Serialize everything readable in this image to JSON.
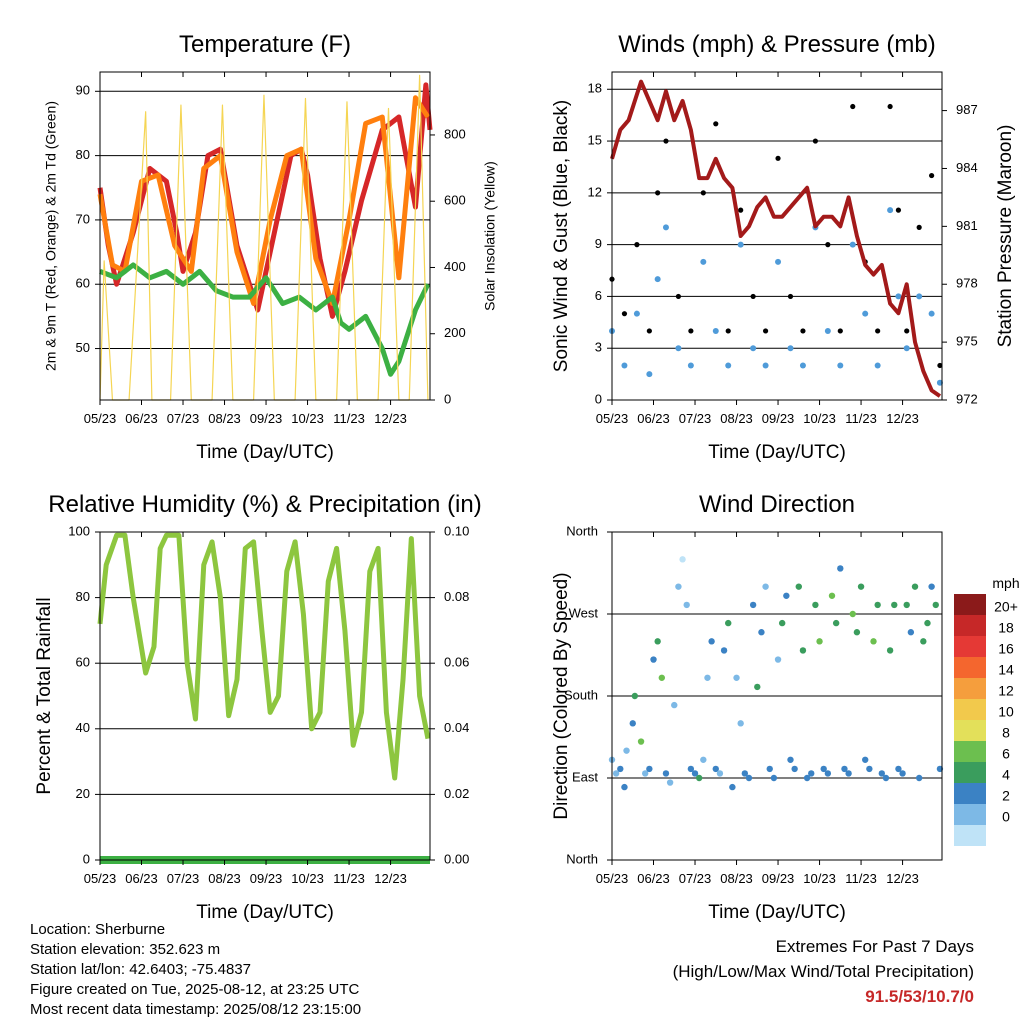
{
  "chart_data": [
    {
      "type": "line",
      "title": "Temperature (F)",
      "xlabel": "Time (Day/UTC)",
      "ylabel": "2m & 9m T (Red, Orange) & 2m Td (Green)",
      "ylabel_right": "Solar Insolation (Yellow)",
      "x_ticks": [
        "05/23",
        "06/23",
        "07/23",
        "08/23",
        "09/23",
        "10/23",
        "11/23",
        "12/23"
      ],
      "ylim": [
        42,
        93
      ],
      "y_ticks": [
        50,
        60,
        70,
        80,
        90
      ],
      "ylim_right": [
        0,
        990
      ],
      "y_ticks_right": [
        0,
        200,
        400,
        600,
        800
      ],
      "grid": true,
      "series": [
        {
          "name": "2m T",
          "color": "#d62728",
          "axis": "left",
          "x": [
            0,
            0.2,
            0.4,
            0.8,
            1.2,
            1.6,
            1.85,
            2.0,
            2.3,
            2.6,
            2.9,
            3.3,
            3.8,
            4.2,
            4.6,
            4.85,
            5.0,
            5.3,
            5.6,
            5.9,
            6.3,
            6.8,
            7.2,
            7.6,
            7.85,
            7.95
          ],
          "y": [
            75,
            66,
            60,
            68,
            78,
            76,
            68,
            62,
            68,
            80,
            81,
            66,
            56,
            68,
            80,
            81,
            77,
            64,
            55,
            62,
            73,
            84,
            86,
            72,
            91,
            84
          ]
        },
        {
          "name": "9m T",
          "color": "#ff7f0e",
          "axis": "left",
          "x": [
            0,
            0.3,
            0.6,
            1.0,
            1.4,
            1.8,
            2.2,
            2.5,
            2.9,
            3.3,
            3.7,
            4.1,
            4.5,
            4.85,
            5.2,
            5.6,
            6.0,
            6.4,
            6.8,
            7.2,
            7.6,
            7.9
          ],
          "y": [
            74,
            63,
            62,
            76,
            77,
            66,
            62,
            78,
            80,
            65,
            57,
            70,
            80,
            81,
            64,
            57,
            70,
            85,
            86,
            61,
            89,
            86
          ]
        },
        {
          "name": "2m Td",
          "color": "#3cb043",
          "axis": "left",
          "x": [
            0,
            0.4,
            0.8,
            1.2,
            1.6,
            2.0,
            2.4,
            2.8,
            3.2,
            3.6,
            4.0,
            4.4,
            4.8,
            5.2,
            5.6,
            5.8,
            6.0,
            6.4,
            6.8,
            7.0,
            7.2,
            7.6,
            7.9
          ],
          "y": [
            62,
            61,
            63,
            61,
            62,
            60,
            62,
            59,
            58,
            58,
            61,
            57,
            58,
            56,
            58,
            54,
            53,
            55,
            50,
            46,
            48,
            56,
            60
          ]
        },
        {
          "name": "Solar Insolation",
          "color": "#f5d553",
          "axis": "right",
          "x": [
            0,
            0.1,
            0.3,
            0.45,
            0.7,
            1.1,
            1.25,
            1.45,
            1.7,
            1.95,
            2.2,
            2.45,
            2.7,
            2.95,
            3.2,
            3.45,
            3.7,
            3.95,
            4.2,
            4.45,
            4.7,
            4.95,
            5.2,
            5.45,
            5.7,
            5.95,
            6.2,
            6.45,
            6.7,
            6.95,
            7.2,
            7.45,
            7.7,
            7.9
          ],
          "y": [
            0,
            420,
            0,
            0,
            0,
            870,
            0,
            0,
            0,
            890,
            0,
            0,
            0,
            890,
            0,
            0,
            0,
            920,
            0,
            0,
            0,
            910,
            0,
            0,
            0,
            900,
            0,
            0,
            0,
            880,
            0,
            0,
            980,
            0
          ]
        }
      ]
    },
    {
      "type": "scatter",
      "title": "Winds (mph) & Pressure (mb)",
      "xlabel": "Time (Day/UTC)",
      "ylabel": "Sonic Wind & Gust (Blue, Black)",
      "ylabel_right": "Station Pressure (Maroon)",
      "x_ticks": [
        "05/23",
        "06/23",
        "07/23",
        "08/23",
        "09/23",
        "10/23",
        "11/23",
        "12/23"
      ],
      "ylim": [
        0,
        19
      ],
      "y_ticks": [
        0,
        3,
        6,
        9,
        12,
        15,
        18
      ],
      "ylim_right": [
        972,
        989
      ],
      "y_ticks_right": [
        972,
        975,
        978,
        981,
        984,
        987
      ],
      "grid": true,
      "series": [
        {
          "name": "Sonic Wind",
          "color": "#4f9bd9",
          "axis": "left",
          "x": [
            0,
            0.3,
            0.6,
            0.9,
            1.1,
            1.3,
            1.6,
            1.9,
            2.2,
            2.5,
            2.8,
            3.1,
            3.4,
            3.7,
            4.0,
            4.3,
            4.6,
            4.9,
            5.2,
            5.5,
            5.8,
            6.1,
            6.4,
            6.7,
            6.9,
            7.1,
            7.4,
            7.7,
            7.9
          ],
          "y": [
            4,
            2,
            5,
            1.5,
            7,
            10,
            3,
            2,
            8,
            4,
            2,
            9,
            3,
            2,
            8,
            3,
            2,
            10,
            4,
            2,
            9,
            5,
            2,
            11,
            6,
            3,
            6,
            5,
            1
          ]
        },
        {
          "name": "Gust",
          "color": "#000000",
          "axis": "left",
          "x": [
            0,
            0.3,
            0.6,
            0.9,
            1.1,
            1.3,
            1.6,
            1.9,
            2.2,
            2.5,
            2.8,
            3.1,
            3.4,
            3.7,
            4.0,
            4.3,
            4.6,
            4.9,
            5.2,
            5.5,
            5.8,
            6.1,
            6.4,
            6.7,
            6.9,
            7.1,
            7.4,
            7.7,
            7.9
          ],
          "y": [
            7,
            5,
            9,
            4,
            12,
            15,
            6,
            4,
            12,
            16,
            4,
            11,
            6,
            4,
            14,
            6,
            4,
            15,
            9,
            4,
            17,
            8,
            4,
            17,
            11,
            4,
            10,
            13,
            2
          ]
        },
        {
          "name": "Station Pressure",
          "color": "#a31a1a",
          "axis": "right",
          "x": [
            0,
            0.2,
            0.4,
            0.7,
            0.9,
            1.1,
            1.3,
            1.5,
            1.7,
            1.9,
            2.1,
            2.3,
            2.5,
            2.7,
            2.9,
            3.1,
            3.3,
            3.5,
            3.7,
            3.9,
            4.1,
            4.3,
            4.5,
            4.7,
            4.9,
            5.1,
            5.3,
            5.5,
            5.7,
            5.9,
            6.1,
            6.3,
            6.5,
            6.7,
            6.9,
            7.1,
            7.3,
            7.5,
            7.7,
            7.9
          ],
          "y": [
            984.5,
            986,
            986.5,
            988.5,
            987.5,
            986.5,
            988,
            986.5,
            987.5,
            986,
            983.5,
            983.5,
            984.5,
            983.5,
            983,
            980.5,
            981,
            982,
            982.5,
            981.5,
            981.5,
            982,
            982.5,
            983,
            981,
            981.5,
            981.5,
            981,
            982.5,
            980.5,
            979,
            978.5,
            979,
            977,
            976.5,
            978,
            975,
            973.5,
            972.5,
            972.2
          ]
        }
      ]
    },
    {
      "type": "line",
      "title": "Relative Humidity (%) & Precipitation (in)",
      "xlabel": "Time (Day/UTC)",
      "ylabel": "Percent & Total Rainfall",
      "x_ticks": [
        "05/23",
        "06/23",
        "07/23",
        "08/23",
        "09/23",
        "10/23",
        "11/23",
        "12/23"
      ],
      "ylim": [
        0,
        100
      ],
      "y_ticks": [
        0,
        20,
        40,
        60,
        80,
        100
      ],
      "ylim_right": [
        0,
        0.1
      ],
      "y_ticks_right": [
        "0.00",
        "0.02",
        "0.04",
        "0.06",
        "0.08",
        "0.10"
      ],
      "grid": true,
      "series": [
        {
          "name": "Relative Humidity",
          "color": "#8dc63f",
          "axis": "left",
          "x": [
            0,
            0.15,
            0.4,
            0.6,
            0.8,
            1.1,
            1.3,
            1.45,
            1.6,
            1.9,
            2.1,
            2.3,
            2.5,
            2.7,
            2.9,
            3.1,
            3.3,
            3.5,
            3.7,
            3.9,
            4.1,
            4.3,
            4.5,
            4.7,
            4.9,
            5.1,
            5.3,
            5.5,
            5.7,
            5.9,
            6.1,
            6.3,
            6.5,
            6.7,
            6.9,
            7.1,
            7.3,
            7.5,
            7.7,
            7.9
          ],
          "y": [
            72,
            90,
            99,
            99,
            80,
            57,
            65,
            95,
            99,
            99,
            60,
            43,
            90,
            97,
            80,
            44,
            55,
            95,
            97,
            70,
            45,
            50,
            88,
            97,
            75,
            40,
            45,
            85,
            95,
            70,
            35,
            45,
            88,
            95,
            45,
            25,
            55,
            98,
            50,
            37
          ]
        },
        {
          "name": "Total Rainfall",
          "color": "#3cb043",
          "axis": "right",
          "x": [
            0,
            7.95
          ],
          "y": [
            0,
            0
          ]
        }
      ]
    },
    {
      "type": "scatter",
      "title": "Wind Direction",
      "xlabel": "Time (Day/UTC)",
      "ylabel": "Direction (Colored By Speed)",
      "x_ticks": [
        "05/23",
        "06/23",
        "07/23",
        "08/23",
        "09/23",
        "10/23",
        "11/23",
        "12/23"
      ],
      "ylim": [
        0,
        360
      ],
      "y_tick_labels": [
        "North",
        "East",
        "South",
        "West",
        "North"
      ],
      "grid": true,
      "colorbar_title": "mph",
      "colorbar_labels": [
        "20+",
        "18",
        "16",
        "14",
        "12",
        "10",
        "8",
        "6",
        "4",
        "2",
        "0"
      ],
      "colorbar_colors": [
        "#8b1a1a",
        "#c62828",
        "#e53935",
        "#f4662e",
        "#f59e3d",
        "#f2c94c",
        "#e3e05a",
        "#6cbf4f",
        "#3a9d5d",
        "#3b82c4",
        "#7db9e6",
        "#bfe3f7"
      ],
      "series": [
        {
          "name": "Direction",
          "x": [
            0,
            0.1,
            0.2,
            0.3,
            0.35,
            0.5,
            0.55,
            0.7,
            0.8,
            0.9,
            1.0,
            1.1,
            1.2,
            1.3,
            1.4,
            1.5,
            1.6,
            1.7,
            1.8,
            1.9,
            2.0,
            2.1,
            2.2,
            2.3,
            2.4,
            2.5,
            2.6,
            2.7,
            2.8,
            2.9,
            3.0,
            3.1,
            3.2,
            3.3,
            3.4,
            3.5,
            3.6,
            3.7,
            3.8,
            3.9,
            4.0,
            4.1,
            4.2,
            4.3,
            4.4,
            4.5,
            4.6,
            4.7,
            4.8,
            4.9,
            5.0,
            5.1,
            5.2,
            5.3,
            5.4,
            5.5,
            5.6,
            5.7,
            5.8,
            5.9,
            6.0,
            6.1,
            6.2,
            6.3,
            6.4,
            6.5,
            6.6,
            6.7,
            6.8,
            6.9,
            7.0,
            7.1,
            7.2,
            7.3,
            7.4,
            7.5,
            7.6,
            7.7,
            7.8,
            7.9
          ],
          "y": [
            110,
            95,
            100,
            80,
            120,
            150,
            180,
            130,
            95,
            100,
            220,
            240,
            200,
            95,
            85,
            170,
            300,
            330,
            280,
            100,
            95,
            90,
            110,
            200,
            240,
            100,
            95,
            230,
            260,
            80,
            200,
            150,
            95,
            90,
            280,
            190,
            250,
            300,
            100,
            90,
            220,
            260,
            290,
            110,
            100,
            300,
            230,
            90,
            95,
            280,
            240,
            100,
            95,
            290,
            260,
            320,
            100,
            95,
            270,
            250,
            300,
            110,
            100,
            240,
            280,
            95,
            90,
            230,
            280,
            100,
            95,
            280,
            250,
            300,
            90,
            240,
            260,
            300,
            280,
            100
          ],
          "speed": [
            3,
            2,
            4,
            5,
            3,
            4,
            6,
            8,
            3,
            4,
            5,
            7,
            9,
            4,
            3,
            2,
            3,
            1,
            2,
            4,
            5,
            6,
            3,
            2,
            4,
            5,
            3,
            4,
            6,
            5,
            3,
            2,
            4,
            5,
            4,
            6,
            5,
            3,
            5,
            4,
            3,
            6,
            5,
            4,
            5,
            7,
            6,
            4,
            5,
            6,
            8,
            4,
            5,
            9,
            7,
            5,
            4,
            5,
            8,
            6,
            7,
            5,
            4,
            8,
            7,
            5,
            4,
            7,
            6,
            5,
            4,
            6,
            5,
            7,
            4,
            6,
            7,
            5,
            6,
            4
          ]
        }
      ]
    }
  ],
  "info": {
    "location": "Location: Sherburne",
    "elevation": "Station elevation: 352.623 m",
    "latlon": "Station lat/lon: 42.6403; -75.4837",
    "created": "Figure created on Tue, 2025-08-12, at 23:25 UTC",
    "recent": "Most recent data timestamp: 2025/08/12 23:15:00"
  },
  "extremes": {
    "title": "Extremes For Past 7 Days",
    "subtitle": "(High/Low/Max Wind/Total Precipitation)",
    "values": "91.5/53/10.7/0"
  }
}
